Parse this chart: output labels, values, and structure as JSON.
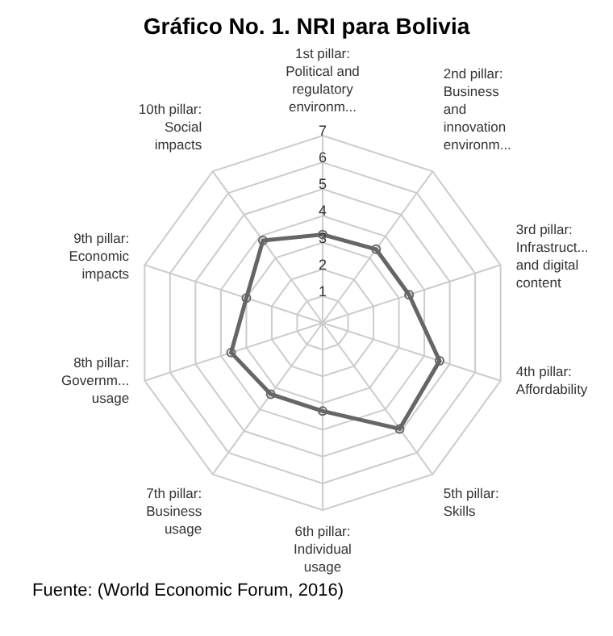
{
  "chart_data": {
    "type": "radar",
    "title": "Gráfico No. 1. NRI para Bolivia",
    "categories": [
      "1st pillar:\nPolitical and\nregulatory\nenvironm...",
      "2nd pillar:\nBusiness\nand\ninnovation\nenvironm...",
      "3rd pillar:\nInfrastruct...\nand digital\ncontent",
      "4th pillar:\nAffordability",
      "5th pillar:\nSkills",
      "6th pillar:\nIndividual\nusage",
      "7th pillar:\nBusiness\nusage",
      "8th pillar:\nGovernm...\nusage",
      "9th pillar:\nEconomic\nimpacts",
      "10th pillar:\nSocial\nimpacts"
    ],
    "series": [
      {
        "color": "#666666",
        "values": [
          3.3,
          3.4,
          3.4,
          4.6,
          4.9,
          3.3,
          3.3,
          3.6,
          3.0,
          3.8
        ]
      }
    ],
    "ylim": [
      0,
      7
    ],
    "yticks": [
      1,
      2,
      3,
      4,
      5,
      6,
      7
    ],
    "grid": true,
    "marker": "circle",
    "annotations": [
      "Fuente: (World Economic Forum, 2016)"
    ]
  }
}
